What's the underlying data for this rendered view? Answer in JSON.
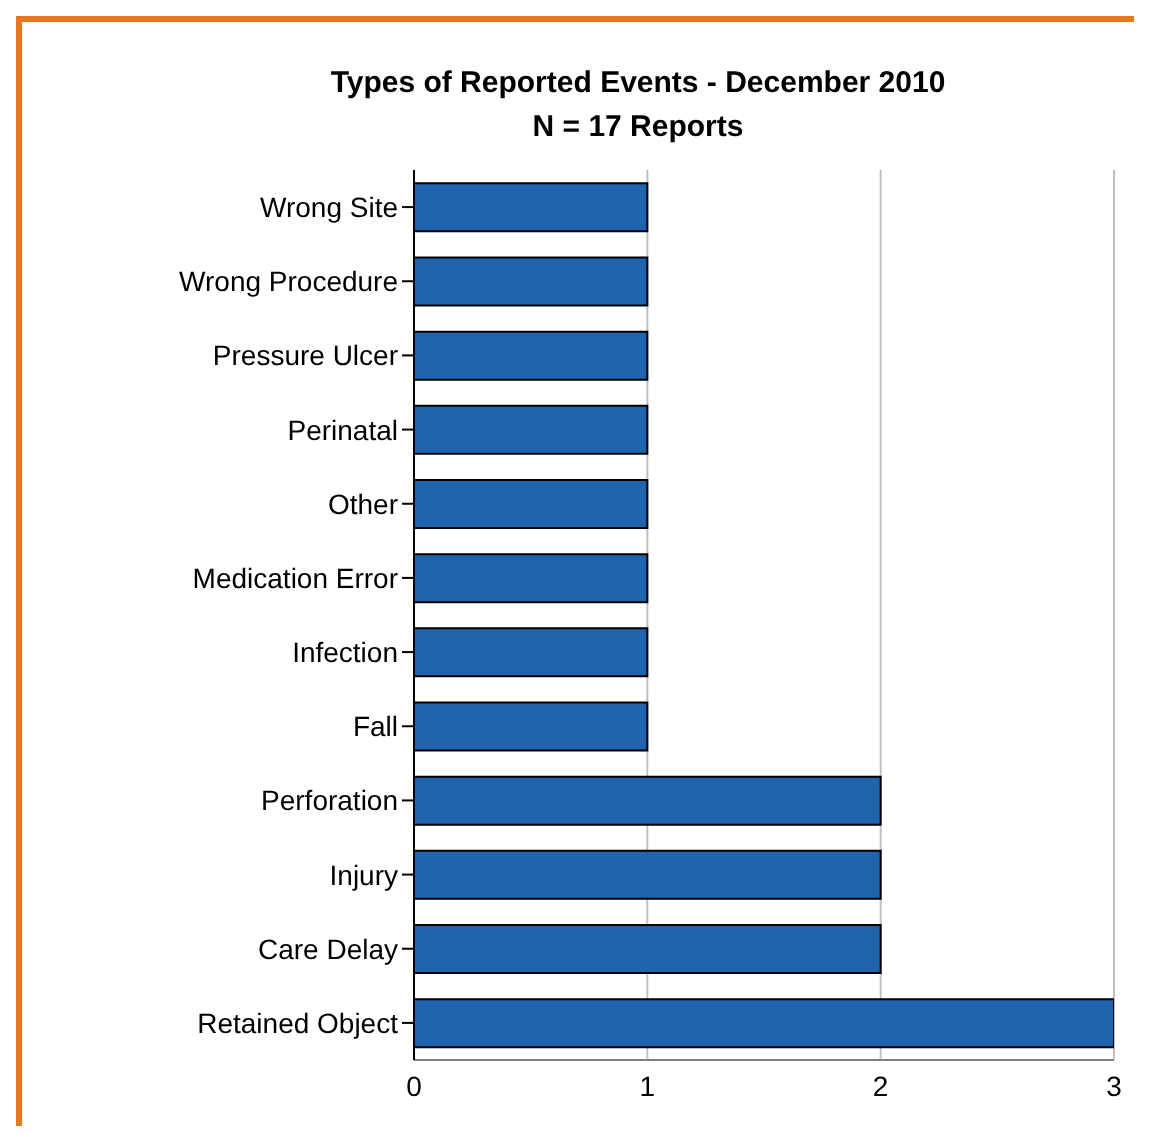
{
  "chart_data": {
    "type": "bar",
    "orientation": "horizontal",
    "title": "Types of Reported Events - December 2010",
    "subtitle": "N = 17 Reports",
    "categories": [
      "Wrong Site",
      "Wrong Procedure",
      "Pressure Ulcer",
      "Perinatal",
      "Other",
      "Medication Error",
      "Infection",
      "Fall",
      "Perforation",
      "Injury",
      "Care Delay",
      "Retained Object"
    ],
    "values": [
      1,
      1,
      1,
      1,
      1,
      1,
      1,
      1,
      2,
      2,
      2,
      3
    ],
    "color": "#1f64ad",
    "xlim": [
      0,
      3
    ],
    "xticks": [
      0,
      1,
      2,
      3
    ],
    "grid": "x"
  }
}
